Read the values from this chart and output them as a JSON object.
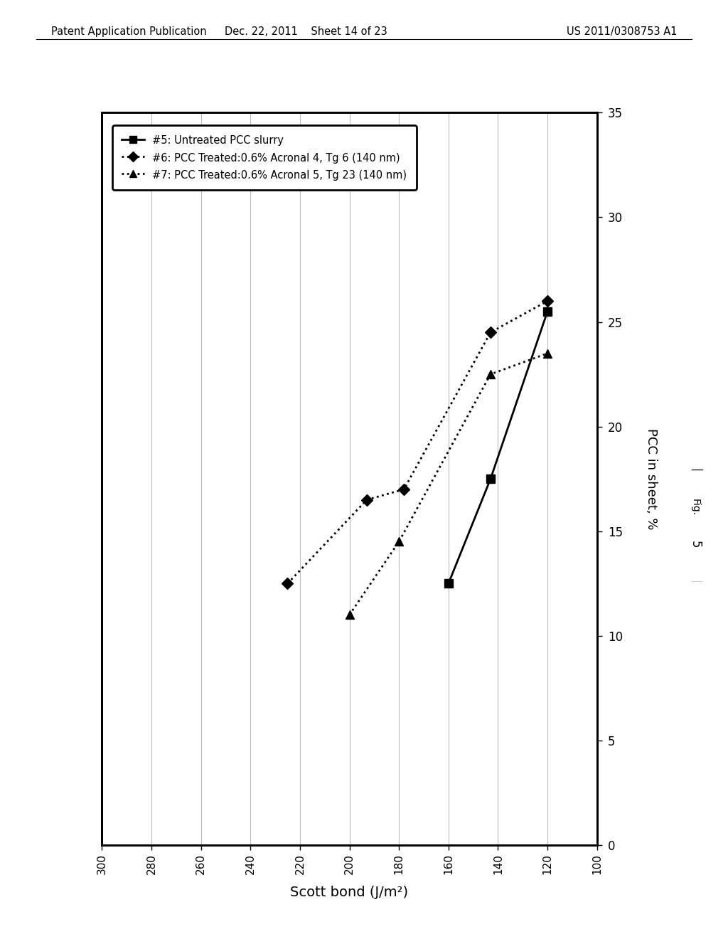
{
  "series": [
    {
      "label": "#5: Untreated PCC slurry",
      "x": [
        160,
        143,
        120
      ],
      "y": [
        12.5,
        17.5,
        25.5
      ],
      "marker": "s",
      "linestyle": "-",
      "color": "#000000",
      "markersize": 9,
      "linewidth": 2
    },
    {
      "label": "#6: PCC Treated:0.6% Acronal 4, Tg 6 (140 nm)",
      "x": [
        225,
        193,
        178,
        143,
        120
      ],
      "y": [
        12.5,
        16.5,
        17.0,
        24.5,
        26.0
      ],
      "marker": "D",
      "linestyle": ":",
      "color": "#000000",
      "markersize": 8,
      "linewidth": 2
    },
    {
      "label": "#7: PCC Treated:0.6% Acronal 5, Tg 23 (140 nm)",
      "x": [
        200,
        180,
        143,
        120
      ],
      "y": [
        11.0,
        14.5,
        22.5,
        23.5
      ],
      "marker": "^",
      "linestyle": ":",
      "color": "#000000",
      "markersize": 9,
      "linewidth": 2
    }
  ],
  "xlabel": "Scott bond (J/m²)",
  "ylabel": "PCC in sheet, %",
  "xlim": [
    100,
    300
  ],
  "ylim": [
    0,
    35
  ],
  "xticks": [
    100,
    120,
    140,
    160,
    180,
    200,
    220,
    240,
    260,
    280,
    300
  ],
  "yticks": [
    0,
    5,
    10,
    15,
    20,
    25,
    30,
    35
  ],
  "header_left": "Patent Application Publication",
  "header_mid": "Dec. 22, 2011    Sheet 14 of 23",
  "header_right": "US 2011/0308753 A1",
  "background_color": "#ffffff",
  "grid_color": "#bbbbbb",
  "fig_label": "Fig.",
  "fig_number": "5"
}
